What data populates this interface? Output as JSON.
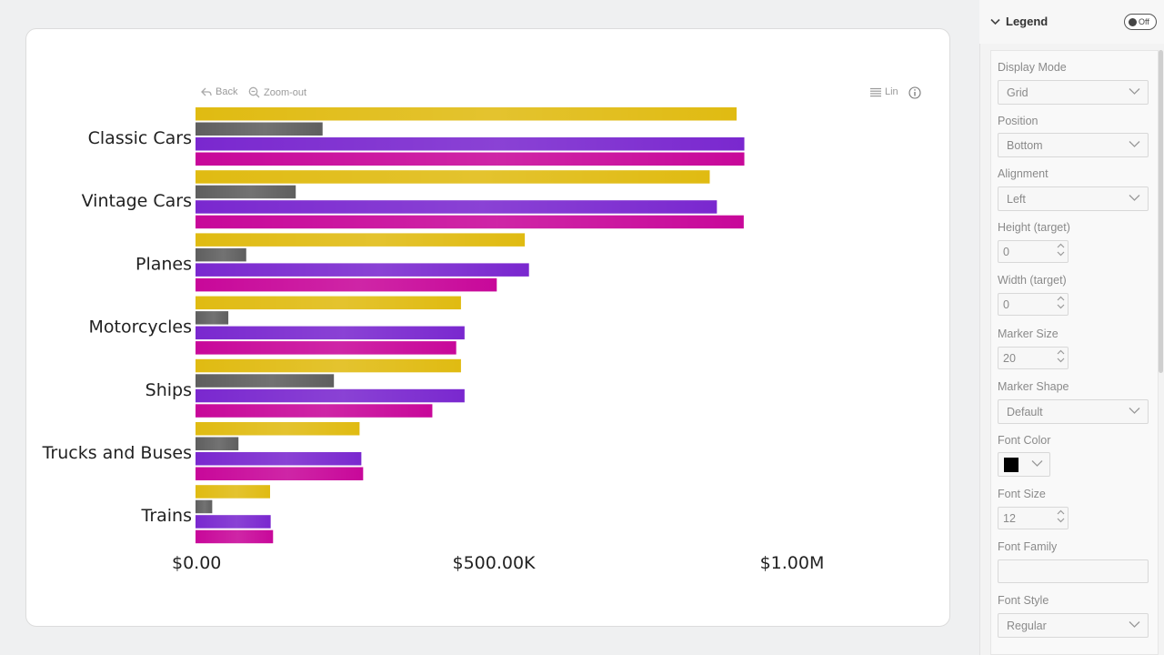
{
  "toolbar": {
    "back_label": "Back",
    "zoom_out_label": "Zoom-out",
    "scale_label": "Lin"
  },
  "chart_data": {
    "type": "bar",
    "orientation": "horizontal",
    "categories": [
      "Classic Cars",
      "Vintage Cars",
      "Planes",
      "Motorcycles",
      "Ships",
      "Trucks and Buses",
      "Trains"
    ],
    "series": [
      {
        "color": "#e0bb12",
        "values": [
          907000,
          862000,
          552000,
          445000,
          445000,
          275000,
          125000
        ]
      },
      {
        "color": "#5f5f5f",
        "values": [
          213000,
          168000,
          85000,
          55000,
          232000,
          72000,
          28000
        ]
      },
      {
        "color": "#7a28cf",
        "values": [
          920000,
          874000,
          559000,
          451000,
          451000,
          278000,
          126000
        ]
      },
      {
        "color": "#c8089a",
        "values": [
          920000,
          919000,
          505000,
          437000,
          397000,
          281000,
          130000
        ]
      }
    ],
    "x_ticks": [
      {
        "value": 0,
        "label": "$0.00"
      },
      {
        "value": 500000,
        "label": "$500.00K"
      },
      {
        "value": 1000000,
        "label": "$1.00M"
      }
    ],
    "xlim": [
      0,
      1000000
    ]
  },
  "pane": {
    "section_title": "Legend",
    "toggle_label": "Off",
    "fields": {
      "display_mode": {
        "label": "Display Mode",
        "value": "Grid"
      },
      "position": {
        "label": "Position",
        "value": "Bottom"
      },
      "alignment": {
        "label": "Alignment",
        "value": "Left"
      },
      "height": {
        "label": "Height (target)",
        "value": "0"
      },
      "width": {
        "label": "Width (target)",
        "value": "0"
      },
      "marker_size": {
        "label": "Marker Size",
        "value": "20"
      },
      "marker_shape": {
        "label": "Marker Shape",
        "value": "Default"
      },
      "font_color": {
        "label": "Font Color",
        "value": "#000000"
      },
      "font_size": {
        "label": "Font Size",
        "value": "12"
      },
      "font_family": {
        "label": "Font Family",
        "value": ""
      },
      "font_style": {
        "label": "Font Style",
        "value": "Regular"
      }
    }
  }
}
